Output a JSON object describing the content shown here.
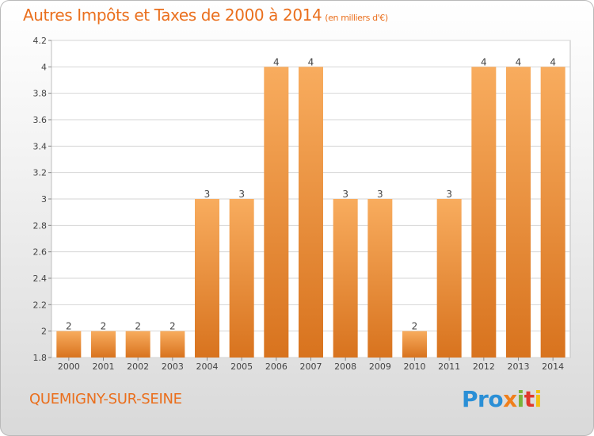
{
  "title": "Autres Impôts et Taxes de 2000 à 2014",
  "title_unit": "(en milliers d'€)",
  "commune": "QUEMIGNY-SUR-SEINE",
  "logo": {
    "p1": "Pro",
    "p2": "x",
    "p3": "i",
    "p4": "t",
    "p5": "i"
  },
  "colors": {
    "accent": "#ea6f1d",
    "bar_light": "#f6a85a",
    "bar_dark": "#dd7a23"
  },
  "chart_data": {
    "type": "bar",
    "categories": [
      "2000",
      "2001",
      "2002",
      "2003",
      "2004",
      "2005",
      "2006",
      "2007",
      "2008",
      "2009",
      "2010",
      "2011",
      "2012",
      "2013",
      "2014"
    ],
    "values": [
      2,
      2,
      2,
      2,
      3,
      3,
      4,
      4,
      3,
      3,
      2,
      3,
      4,
      4,
      4
    ],
    "value_labels": [
      "2",
      "2",
      "2",
      "2",
      "3",
      "3",
      "4",
      "4",
      "3",
      "3",
      "2",
      "3",
      "4",
      "4",
      "4"
    ],
    "ylim": [
      1.8,
      4.2
    ],
    "yticks": [
      1.8,
      2,
      2.2,
      2.4,
      2.6,
      2.8,
      3,
      3.2,
      3.4,
      3.6,
      3.8,
      4,
      4.2
    ],
    "ytick_labels": [
      "1.8",
      "2",
      "2.2",
      "2.4",
      "2.6",
      "2.8",
      "3",
      "3.2",
      "3.4",
      "3.6",
      "3.8",
      "4",
      "4.2"
    ],
    "grid": true
  }
}
